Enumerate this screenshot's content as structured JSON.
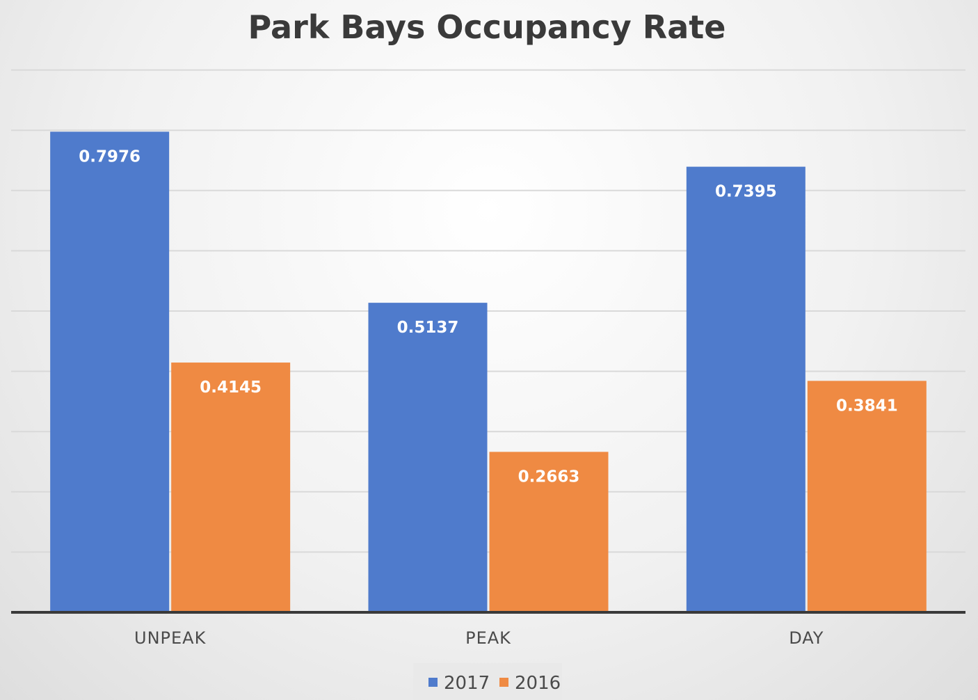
{
  "chart_data": {
    "type": "bar",
    "title": "Park Bays Occupancy Rate",
    "categories": [
      "UNPEAK",
      "PEAK",
      "DAY"
    ],
    "series": [
      {
        "name": "2017",
        "values": [
          0.7976,
          0.5137,
          0.7395
        ],
        "labels": [
          "0.7976",
          "0.5137",
          "0.7395"
        ],
        "color": "#4f7bcc"
      },
      {
        "name": "2016",
        "values": [
          0.4145,
          0.2663,
          0.3841
        ],
        "labels": [
          "0.4145",
          "0.2663",
          "0.3841"
        ],
        "color": "#ef8a43"
      }
    ],
    "ylim": [
      0,
      0.9
    ],
    "grid": true,
    "legend": "bottom-center"
  }
}
